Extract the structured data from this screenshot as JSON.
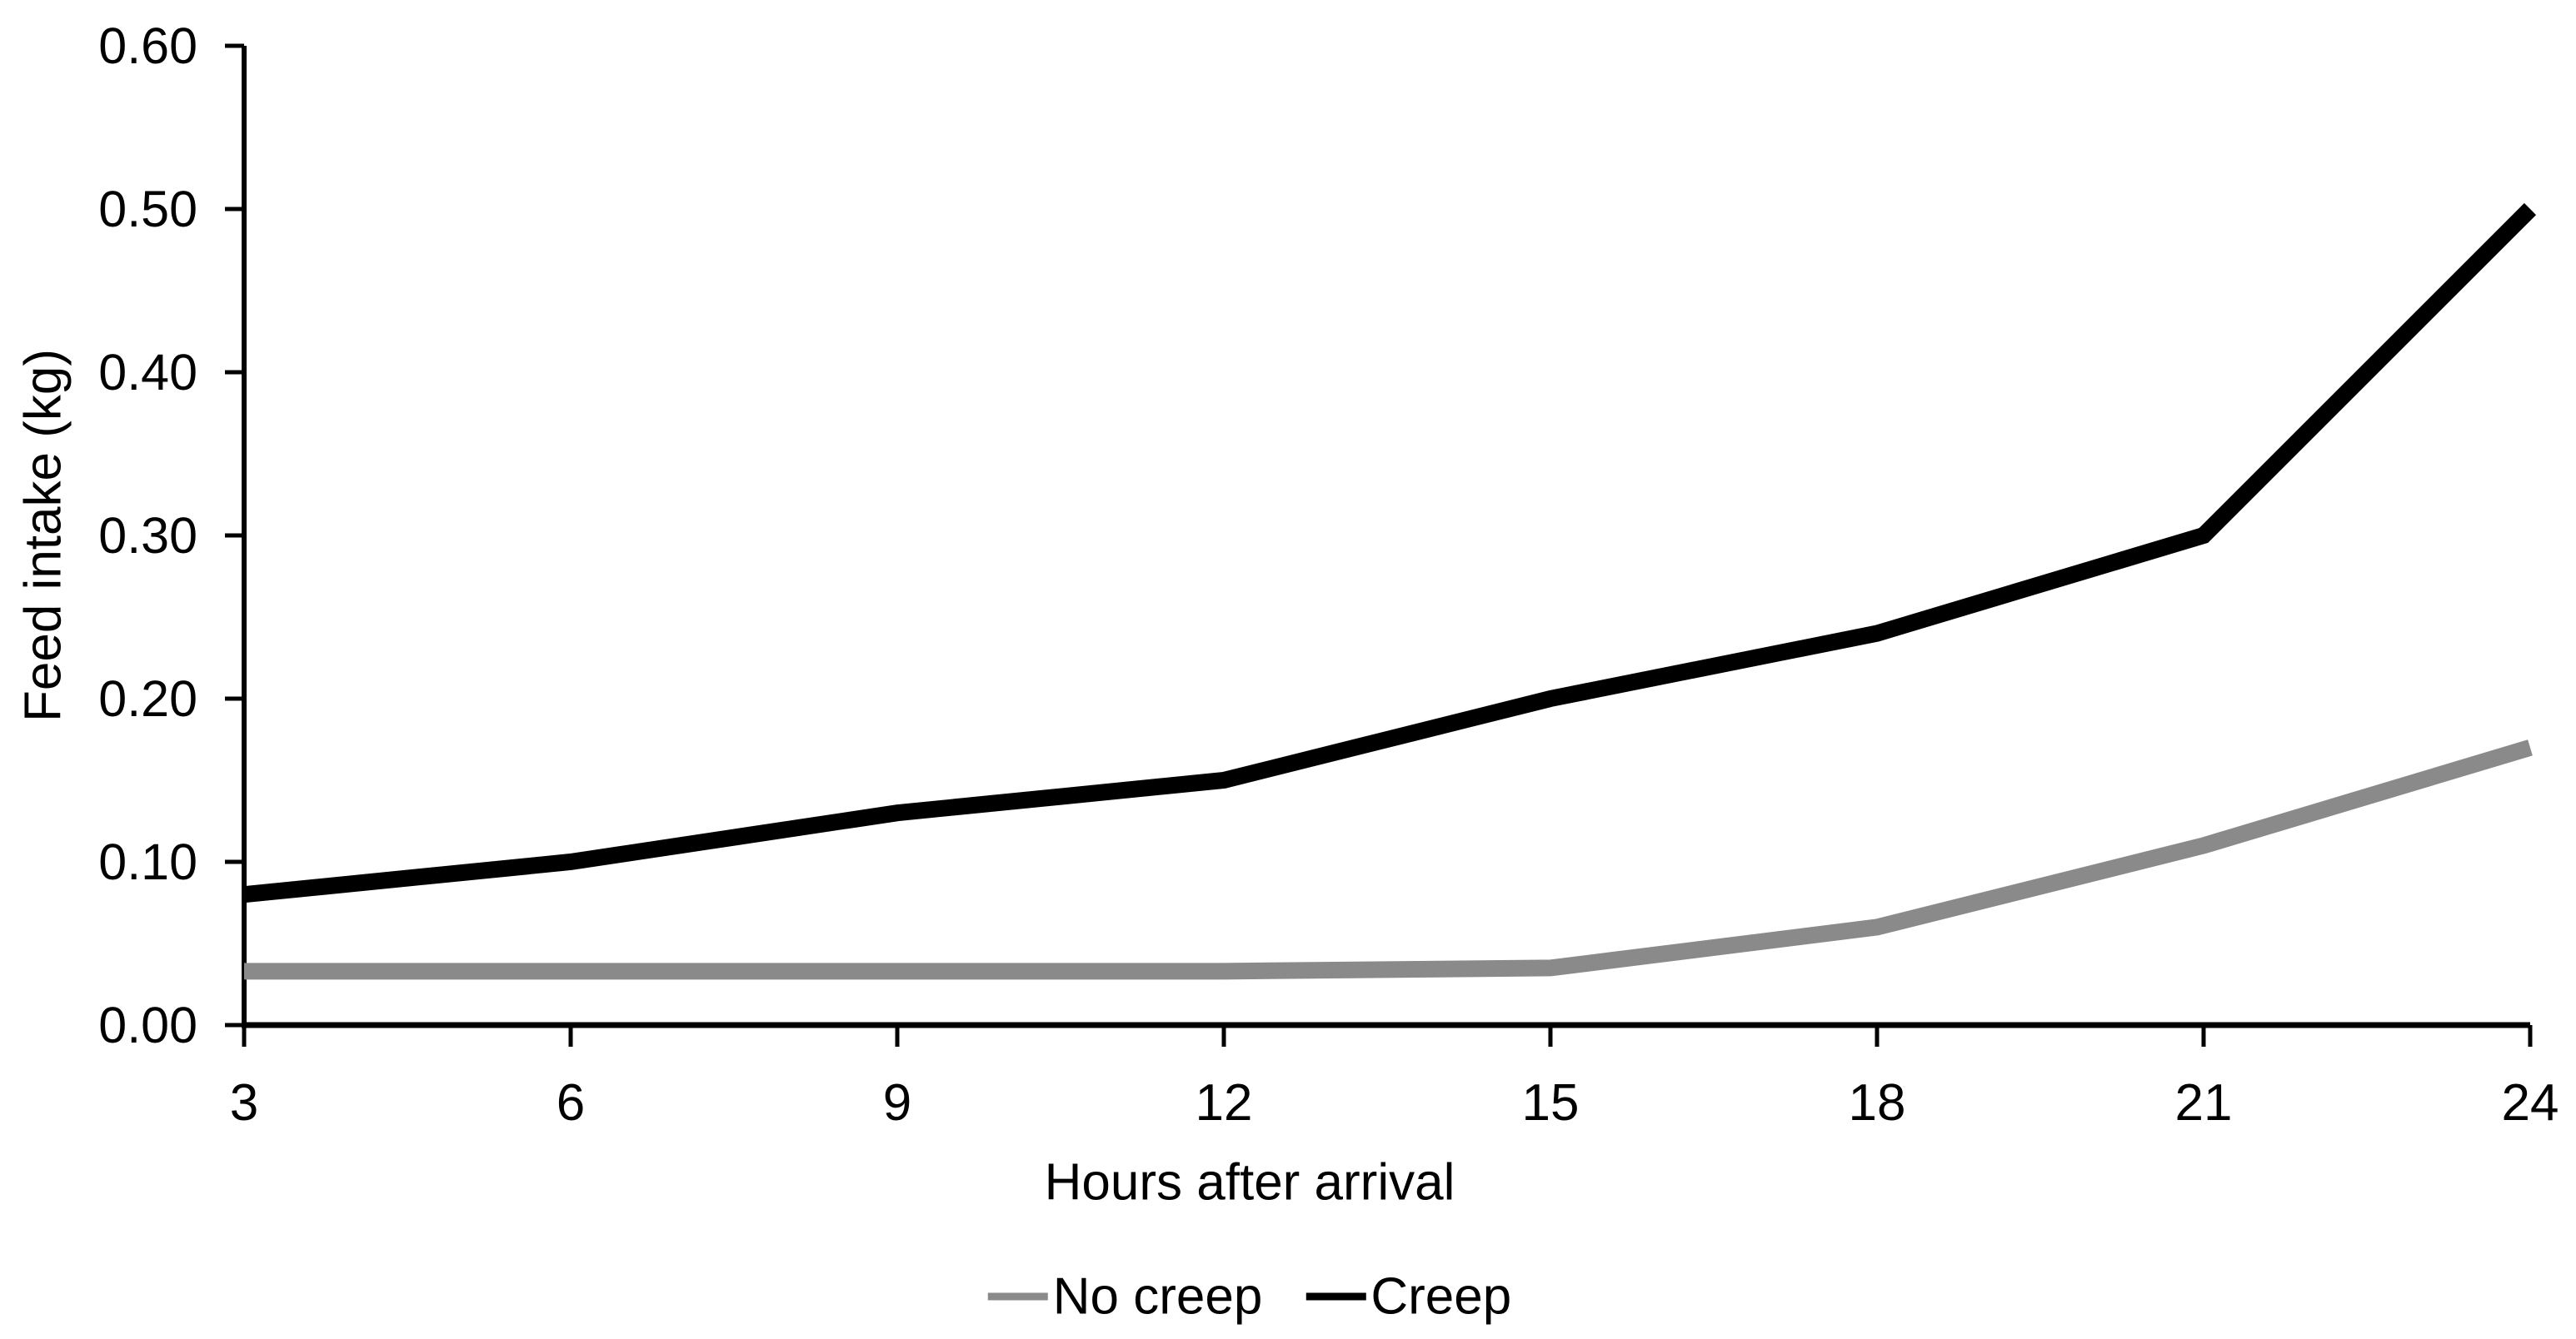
{
  "chart_data": {
    "type": "line",
    "title": "",
    "xlabel": "Hours after arrival",
    "ylabel": "Feed intake (kg)",
    "x": [
      3,
      6,
      9,
      12,
      15,
      18,
      21,
      24
    ],
    "x_tick_labels": [
      "3",
      "6",
      "9",
      "12",
      "15",
      "18",
      "21",
      "24"
    ],
    "y_tick_values": [
      0.0,
      0.1,
      0.2,
      0.3,
      0.4,
      0.5,
      0.6
    ],
    "y_tick_labels": [
      "0.00",
      "0.10",
      "0.20",
      "0.30",
      "0.40",
      "0.50",
      "0.60"
    ],
    "xlim": [
      3,
      24
    ],
    "ylim": [
      0.0,
      0.6
    ],
    "grid": false,
    "legend_position": "bottom-center",
    "series": [
      {
        "name": "No creep",
        "color": "#8a8a8a",
        "values": [
          0.033,
          0.033,
          0.033,
          0.033,
          0.035,
          0.06,
          0.11,
          0.17
        ]
      },
      {
        "name": "Creep",
        "color": "#000000",
        "values": [
          0.08,
          0.1,
          0.13,
          0.15,
          0.2,
          0.24,
          0.3,
          0.5
        ]
      }
    ]
  },
  "colors": {
    "axis": "#000000",
    "text": "#000000",
    "background": "#ffffff",
    "series_no_creep": "#8a8a8a",
    "series_creep": "#000000"
  }
}
